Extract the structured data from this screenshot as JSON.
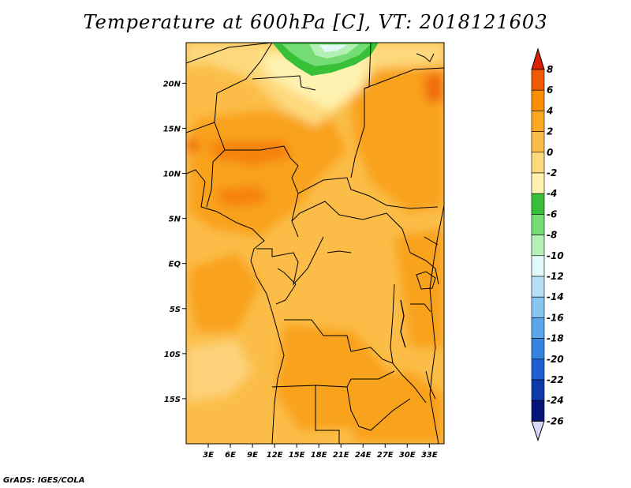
{
  "title": "Temperature at 600hPa [C], VT: 2018121603",
  "credit": "GrADS: IGES/COLA",
  "map": {
    "lon_range": [
      0,
      35
    ],
    "lat_range": [
      -20,
      24.5
    ],
    "lon_ticks": [
      {
        "value": 3,
        "label": "3E"
      },
      {
        "value": 6,
        "label": "6E"
      },
      {
        "value": 9,
        "label": "9E"
      },
      {
        "value": 12,
        "label": "12E"
      },
      {
        "value": 15,
        "label": "15E"
      },
      {
        "value": 18,
        "label": "18E"
      },
      {
        "value": 21,
        "label": "21E"
      },
      {
        "value": 24,
        "label": "24E"
      },
      {
        "value": 27,
        "label": "27E"
      },
      {
        "value": 30,
        "label": "30E"
      },
      {
        "value": 33,
        "label": "33E"
      }
    ],
    "lat_ticks": [
      {
        "value": 20,
        "label": "20N"
      },
      {
        "value": 15,
        "label": "15N"
      },
      {
        "value": 10,
        "label": "10N"
      },
      {
        "value": 5,
        "label": "5N"
      },
      {
        "value": 0,
        "label": "EQ"
      },
      {
        "value": -5,
        "label": "5S"
      },
      {
        "value": -10,
        "label": "10S"
      },
      {
        "value": -15,
        "label": "15S"
      }
    ]
  },
  "colorbar": {
    "labels": [
      "8",
      "6",
      "4",
      "2",
      "0",
      "-2",
      "-4",
      "-6",
      "-8",
      "-10",
      "-12",
      "-14",
      "-16",
      "-18",
      "-20",
      "-22",
      "-24",
      "-26"
    ],
    "colors": [
      "#d92000",
      "#f05a00",
      "#f88e00",
      "#faa722",
      "#fbbd48",
      "#fdd97d",
      "#fef2b0",
      "#38c038",
      "#74dc74",
      "#b4f0b4",
      "#e2f8fa",
      "#b6e0f8",
      "#88c6f2",
      "#5aa6ec",
      "#3684e2",
      "#1e60d2",
      "#0c3aaa",
      "#06157a",
      "#d8d8f6"
    ]
  }
}
